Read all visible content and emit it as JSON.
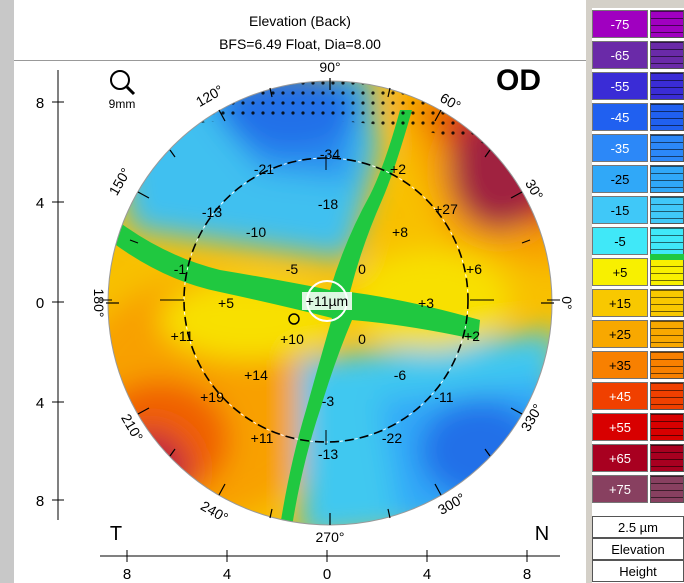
{
  "header": {
    "title": "Elevation (Back)",
    "subtitle": "BFS=6.49 Float, Dia=8.00"
  },
  "eye_label": "OD",
  "zoom": {
    "icon": "magnifier-icon",
    "label": "9mm"
  },
  "side_labels": {
    "temporal": "T",
    "nasal": "N"
  },
  "angle_labels": [
    "90°",
    "60°",
    "30°",
    "0°",
    "330°",
    "300°",
    "270°",
    "240°",
    "210°",
    "180°",
    "150°",
    "120°"
  ],
  "center_value": "+11µm",
  "map_values": [
    "-34",
    "-21",
    "+2",
    "-13",
    "-18",
    "+27",
    "-10",
    "+8",
    "-1",
    "-5",
    "0",
    "+6",
    "+5",
    "+3",
    "+11",
    "+10",
    "0",
    "+2",
    "+14",
    "-6",
    "+19",
    "-3",
    "-11",
    "+11",
    "-22",
    "-13"
  ],
  "axis": {
    "y_ticks": [
      "8",
      "4",
      "0",
      "4",
      "8"
    ],
    "x_ticks": [
      "8",
      "4",
      "0",
      "4",
      "8"
    ]
  },
  "legend": {
    "entries": [
      {
        "label": "-75",
        "color": "#a000c0"
      },
      {
        "label": "-65",
        "color": "#6a2aa8"
      },
      {
        "label": "-55",
        "color": "#3a2cd6"
      },
      {
        "label": "-45",
        "color": "#2060f0"
      },
      {
        "label": "-35",
        "color": "#2c88f8"
      },
      {
        "label": "-25",
        "color": "#30a8f8"
      },
      {
        "label": "-15",
        "color": "#40c8f8"
      },
      {
        "label": "-5",
        "color": "#40e8f8"
      },
      {
        "label": "+5",
        "color": "#f8f000"
      },
      {
        "label": "+15",
        "color": "#f8c800"
      },
      {
        "label": "+25",
        "color": "#f8a800"
      },
      {
        "label": "+35",
        "color": "#f88000"
      },
      {
        "label": "+45",
        "color": "#f04000"
      },
      {
        "label": "+55",
        "color": "#d80000"
      },
      {
        "label": "+65",
        "color": "#a80020"
      },
      {
        "label": "+75",
        "color": "#884060"
      }
    ],
    "step": "2.5 µm",
    "mode": "Elevation",
    "type": "Height"
  },
  "colors": {
    "green_band": "#20c840",
    "map_blue": "#40c8f0",
    "map_yellow": "#f8d000",
    "map_red": "#c02020"
  }
}
